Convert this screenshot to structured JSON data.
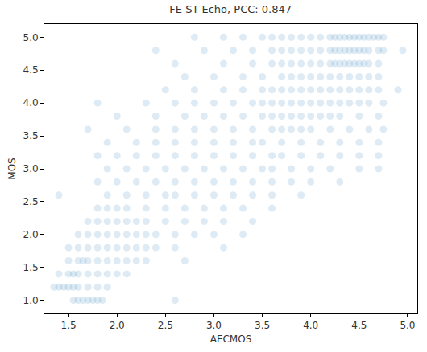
{
  "chart_data": {
    "type": "scatter",
    "title": "FE ST Echo, PCC: 0.847",
    "x_label": "AECMOS",
    "y_label": "MOS",
    "color": "#1f77b4",
    "marker": "circle",
    "grid": false,
    "xlim": [
      1.25,
      5.1
    ],
    "ylim": [
      0.8,
      5.2
    ],
    "xticks": [
      1.5,
      {
        "value": 2,
        "label": "2.0"
      },
      2.5,
      {
        "value": 3,
        "label": "3.0"
      },
      3.5,
      {
        "value": 4,
        "label": "4.0"
      },
      4.5,
      {
        "value": 5,
        "label": "5.0"
      }
    ],
    "yticks": [
      {
        "value": 1,
        "label": "1.0"
      },
      1.5,
      {
        "value": 2,
        "label": "2.0"
      },
      2.5,
      {
        "value": 3,
        "label": "3.0"
      },
      3.5,
      {
        "value": 4,
        "label": "4.0"
      },
      4.5,
      {
        "value": 5,
        "label": "5.0"
      }
    ],
    "x": [
      1.55,
      1.6,
      1.65,
      1.7,
      1.75,
      1.8,
      1.85,
      2.6,
      1.35,
      1.4,
      1.45,
      1.5,
      1.55,
      1.6,
      1.7,
      1.8,
      1.9,
      1.4,
      1.5,
      1.55,
      1.6,
      1.7,
      1.8,
      1.9,
      2.0,
      2.1,
      1.5,
      1.6,
      1.65,
      1.7,
      1.8,
      1.9,
      2.0,
      2.1,
      2.2,
      2.3,
      2.7,
      1.5,
      1.6,
      1.7,
      1.8,
      1.9,
      2.0,
      2.1,
      2.2,
      2.3,
      2.4,
      2.6,
      3.1,
      1.6,
      1.7,
      1.8,
      1.9,
      2.0,
      2.1,
      2.2,
      2.3,
      2.4,
      2.6,
      2.8,
      3.0,
      3.3,
      1.7,
      1.8,
      1.9,
      2.0,
      2.1,
      2.2,
      2.3,
      2.5,
      2.7,
      2.9,
      3.1,
      3.4,
      1.8,
      1.9,
      2.0,
      2.1,
      2.3,
      2.5,
      2.7,
      2.9,
      3.1,
      3.3,
      3.6,
      1.4,
      1.9,
      2.1,
      2.3,
      2.5,
      2.6,
      2.8,
      3.0,
      3.2,
      3.4,
      3.6,
      3.9,
      1.8,
      2.0,
      2.2,
      2.4,
      2.6,
      2.8,
      3.0,
      3.2,
      3.4,
      3.6,
      3.8,
      4.0,
      4.3,
      1.9,
      2.1,
      2.3,
      2.5,
      2.7,
      2.9,
      3.1,
      3.3,
      3.5,
      3.6,
      3.8,
      4.0,
      4.2,
      4.5,
      4.7,
      1.8,
      2.0,
      2.2,
      2.4,
      2.6,
      2.8,
      3.0,
      3.2,
      3.4,
      3.6,
      3.7,
      3.9,
      4.1,
      4.3,
      4.5,
      4.7,
      1.9,
      2.2,
      2.4,
      2.6,
      2.8,
      3.0,
      3.2,
      3.4,
      3.5,
      3.7,
      3.9,
      4.1,
      4.3,
      4.5,
      4.7,
      1.7,
      2.1,
      2.4,
      2.6,
      2.8,
      3.0,
      3.2,
      3.4,
      3.6,
      3.7,
      3.8,
      3.9,
      4.0,
      4.2,
      4.4,
      4.6,
      4.75,
      2.0,
      2.4,
      2.7,
      2.9,
      3.1,
      3.3,
      3.5,
      3.6,
      3.7,
      3.8,
      3.9,
      4.0,
      4.1,
      4.2,
      4.3,
      4.5,
      4.7,
      1.8,
      2.3,
      2.6,
      2.8,
      3.0,
      3.2,
      3.4,
      3.5,
      3.6,
      3.7,
      3.8,
      3.9,
      4.0,
      4.1,
      4.2,
      4.3,
      4.4,
      4.5,
      4.6,
      4.75,
      2.5,
      2.8,
      3.1,
      3.3,
      3.5,
      3.6,
      3.7,
      3.8,
      3.9,
      4.0,
      4.1,
      4.2,
      4.3,
      4.4,
      4.5,
      4.6,
      4.7,
      4.9,
      2.7,
      3.0,
      3.3,
      3.5,
      3.7,
      3.8,
      3.9,
      4.0,
      4.1,
      4.2,
      4.3,
      4.4,
      4.5,
      4.6,
      4.7,
      2.6,
      3.1,
      3.4,
      3.6,
      3.7,
      3.8,
      3.9,
      4.0,
      4.1,
      4.2,
      4.25,
      4.3,
      4.35,
      4.4,
      4.45,
      4.5,
      4.55,
      4.6,
      4.7,
      2.4,
      2.9,
      3.2,
      3.4,
      3.6,
      3.7,
      3.8,
      3.9,
      4.0,
      4.1,
      4.2,
      4.25,
      4.3,
      4.35,
      4.4,
      4.45,
      4.5,
      4.55,
      4.6,
      4.7,
      4.75,
      4.95,
      2.8,
      3.1,
      3.3,
      3.5,
      3.6,
      3.7,
      3.8,
      3.9,
      4.0,
      4.1,
      4.2,
      4.25,
      4.3,
      4.35,
      4.4,
      4.45,
      4.5,
      4.55,
      4.6,
      4.65,
      4.7,
      4.75
    ],
    "values": [
      1,
      1,
      1,
      1,
      1,
      1,
      1,
      1,
      1.2,
      1.2,
      1.2,
      1.2,
      1.2,
      1.2,
      1.2,
      1.2,
      1.2,
      1.4,
      1.4,
      1.4,
      1.4,
      1.4,
      1.4,
      1.4,
      1.4,
      1.4,
      1.6,
      1.6,
      1.6,
      1.6,
      1.6,
      1.6,
      1.6,
      1.6,
      1.6,
      1.6,
      1.6,
      1.8,
      1.8,
      1.8,
      1.8,
      1.8,
      1.8,
      1.8,
      1.8,
      1.8,
      1.8,
      1.8,
      1.8,
      2,
      2,
      2,
      2,
      2,
      2,
      2,
      2,
      2,
      2,
      2,
      2,
      2,
      2.2,
      2.2,
      2.2,
      2.2,
      2.2,
      2.2,
      2.2,
      2.2,
      2.2,
      2.2,
      2.2,
      2.2,
      2.4,
      2.4,
      2.4,
      2.4,
      2.4,
      2.4,
      2.4,
      2.4,
      2.4,
      2.4,
      2.4,
      2.6,
      2.6,
      2.6,
      2.6,
      2.6,
      2.6,
      2.6,
      2.6,
      2.6,
      2.6,
      2.6,
      2.6,
      2.8,
      2.8,
      2.8,
      2.8,
      2.8,
      2.8,
      2.8,
      2.8,
      2.8,
      2.8,
      2.8,
      2.8,
      2.8,
      3,
      3,
      3,
      3,
      3,
      3,
      3,
      3,
      3,
      3,
      3,
      3,
      3,
      3,
      3,
      3.2,
      3.2,
      3.2,
      3.2,
      3.2,
      3.2,
      3.2,
      3.2,
      3.2,
      3.2,
      3.2,
      3.2,
      3.2,
      3.2,
      3.2,
      3.2,
      3.4,
      3.4,
      3.4,
      3.4,
      3.4,
      3.4,
      3.4,
      3.4,
      3.4,
      3.4,
      3.4,
      3.4,
      3.4,
      3.4,
      3.4,
      3.6,
      3.6,
      3.6,
      3.6,
      3.6,
      3.6,
      3.6,
      3.6,
      3.6,
      3.6,
      3.6,
      3.6,
      3.6,
      3.6,
      3.6,
      3.6,
      3.6,
      3.8,
      3.8,
      3.8,
      3.8,
      3.8,
      3.8,
      3.8,
      3.8,
      3.8,
      3.8,
      3.8,
      3.8,
      3.8,
      3.8,
      3.8,
      3.8,
      3.8,
      4,
      4,
      4,
      4,
      4,
      4,
      4,
      4,
      4,
      4,
      4,
      4,
      4,
      4,
      4,
      4,
      4,
      4,
      4,
      4,
      4.2,
      4.2,
      4.2,
      4.2,
      4.2,
      4.2,
      4.2,
      4.2,
      4.2,
      4.2,
      4.2,
      4.2,
      4.2,
      4.2,
      4.2,
      4.2,
      4.2,
      4.2,
      4.4,
      4.4,
      4.4,
      4.4,
      4.4,
      4.4,
      4.4,
      4.4,
      4.4,
      4.4,
      4.4,
      4.4,
      4.4,
      4.4,
      4.4,
      4.6,
      4.6,
      4.6,
      4.6,
      4.6,
      4.6,
      4.6,
      4.6,
      4.6,
      4.6,
      4.6,
      4.6,
      4.6,
      4.6,
      4.6,
      4.6,
      4.6,
      4.6,
      4.6,
      4.8,
      4.8,
      4.8,
      4.8,
      4.8,
      4.8,
      4.8,
      4.8,
      4.8,
      4.8,
      4.8,
      4.8,
      4.8,
      4.8,
      4.8,
      4.8,
      4.8,
      4.8,
      4.8,
      4.8,
      4.8,
      4.8,
      5,
      5,
      5,
      5,
      5,
      5,
      5,
      5,
      5,
      5,
      5,
      5,
      5,
      5,
      5,
      5,
      5,
      5,
      5,
      5,
      5,
      5
    ]
  }
}
